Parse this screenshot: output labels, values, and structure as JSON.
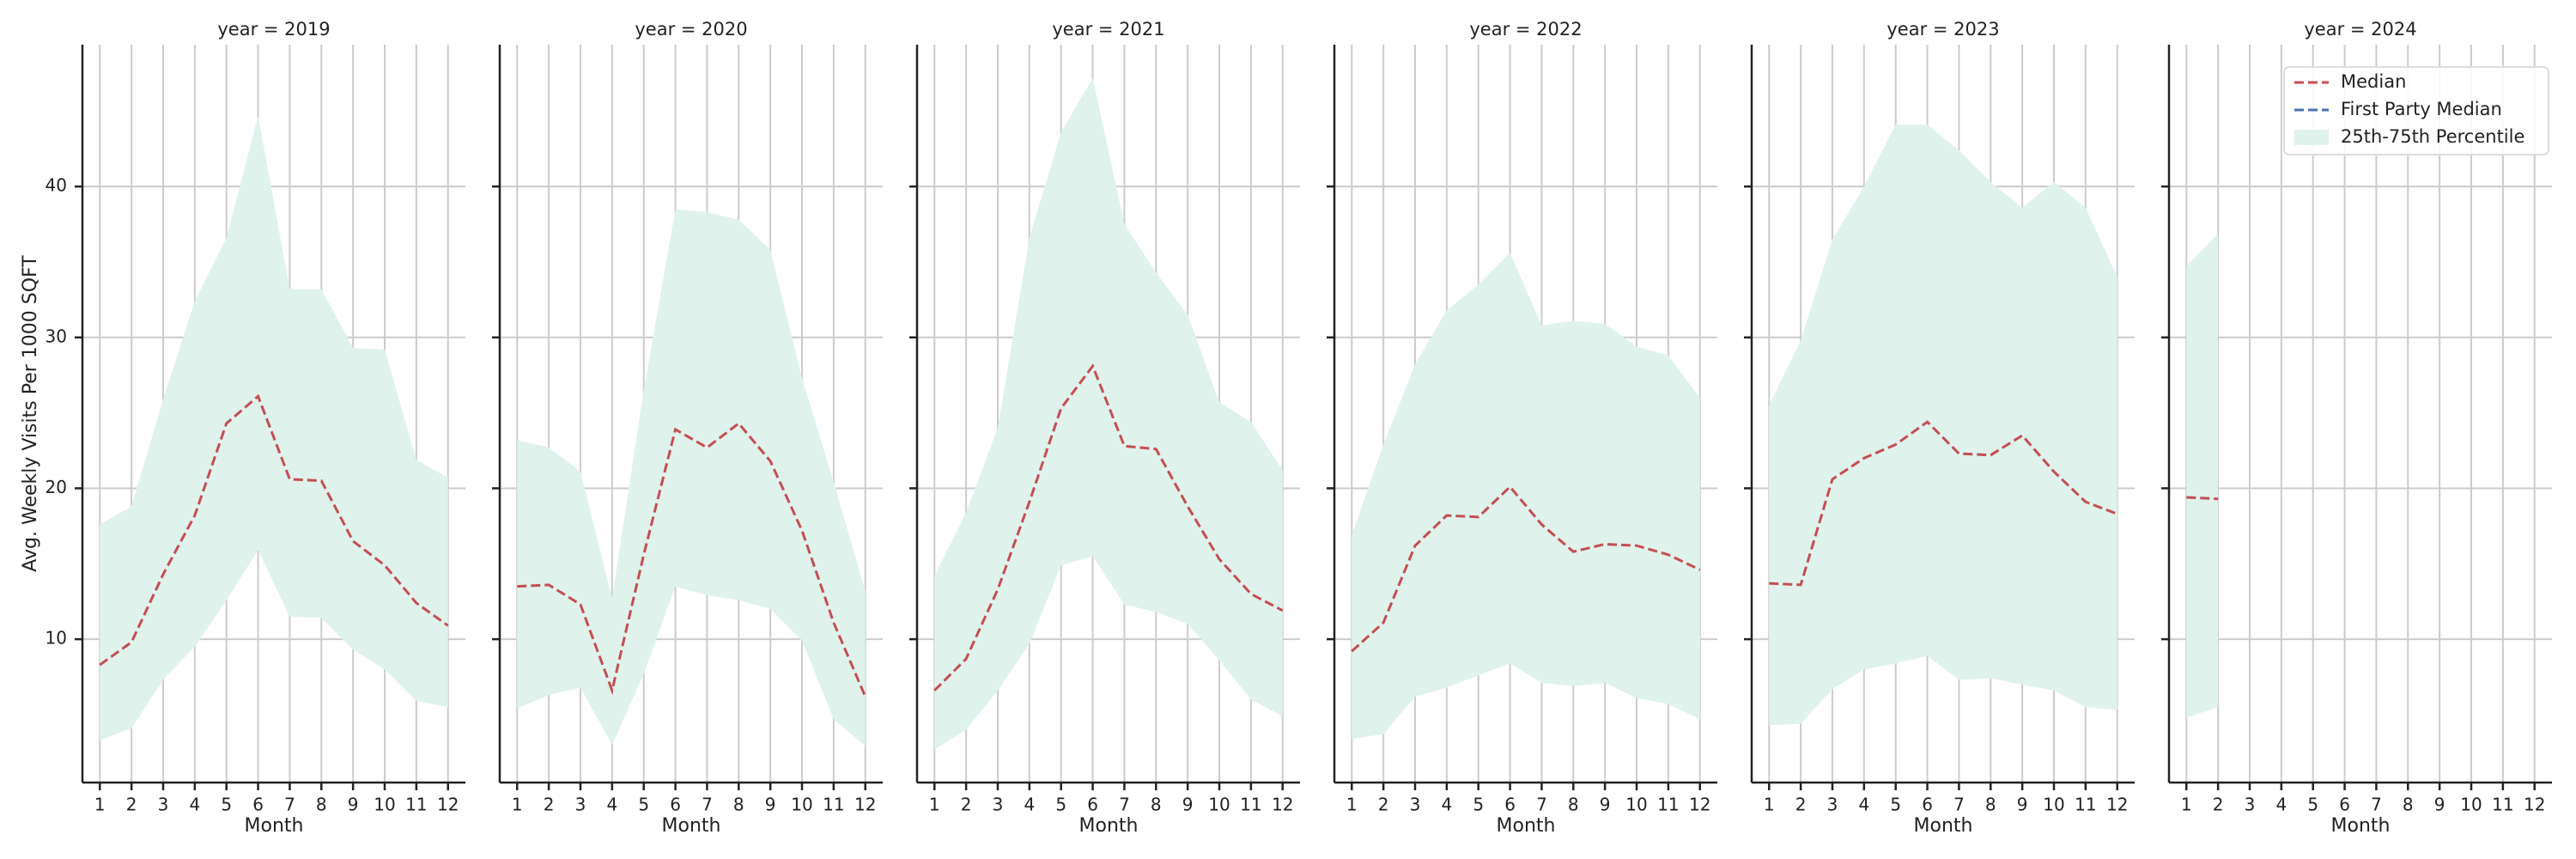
{
  "chart_data": [
    {
      "type": "line",
      "title": "year = 2019",
      "xlabel": "Month",
      "ylabel": "Avg. Weekly Visits Per 1000 SQFT",
      "x": [
        1,
        2,
        3,
        4,
        5,
        6,
        7,
        8,
        9,
        10,
        11,
        12
      ],
      "xlim": [
        0.45,
        12.55
      ],
      "xticks": [
        1,
        2,
        3,
        4,
        5,
        6,
        7,
        8,
        9,
        10,
        11,
        12
      ],
      "ylim": [
        0.5,
        49.4
      ],
      "yticks": [
        10,
        20,
        30,
        40
      ],
      "grid": true,
      "series": [
        {
          "name": "Median",
          "color": "#c44e52",
          "values": [
            8.3,
            9.8,
            14.3,
            18.2,
            24.3,
            26.1,
            20.6,
            20.5,
            16.5,
            14.9,
            12.4,
            10.9
          ]
        },
        {
          "name": "First Party Median",
          "color": "#4c72b0",
          "values": [
            null,
            null,
            null,
            null,
            null,
            null,
            null,
            null,
            null,
            null,
            null,
            null
          ]
        },
        {
          "name": "25th-75th Percentile",
          "color": "#e0f2ec",
          "lower": [
            3.3,
            4.1,
            7.3,
            9.5,
            12.6,
            15.9,
            11.5,
            11.4,
            9.3,
            8.0,
            5.9,
            5.5
          ],
          "upper": [
            17.6,
            18.8,
            25.9,
            32.4,
            36.6,
            44.7,
            33.2,
            33.2,
            29.3,
            29.2,
            21.9,
            20.7
          ]
        }
      ]
    },
    {
      "type": "line",
      "title": "year = 2020",
      "xlabel": "Month",
      "x": [
        1,
        2,
        3,
        4,
        5,
        6,
        7,
        8,
        9,
        10,
        11,
        12
      ],
      "xlim": [
        0.45,
        12.55
      ],
      "xticks": [
        1,
        2,
        3,
        4,
        5,
        6,
        7,
        8,
        9,
        10,
        11,
        12
      ],
      "ylim": [
        0.5,
        49.4
      ],
      "yticks": [
        10,
        20,
        30,
        40
      ],
      "grid": true,
      "series": [
        {
          "name": "Median",
          "color": "#c44e52",
          "values": [
            13.5,
            13.6,
            12.3,
            6.6,
            15.6,
            23.9,
            22.7,
            24.3,
            21.8,
            17.2,
            11.1,
            6.2
          ]
        },
        {
          "name": "First Party Median",
          "color": "#4c72b0",
          "values": [
            null,
            null,
            null,
            null,
            null,
            null,
            null,
            null,
            null,
            null,
            null,
            null
          ]
        },
        {
          "name": "25th-75th Percentile",
          "color": "#e0f2ec",
          "lower": [
            5.4,
            6.3,
            6.8,
            3.0,
            7.7,
            13.5,
            12.9,
            12.6,
            12.0,
            9.9,
            4.7,
            2.9
          ],
          "upper": [
            23.2,
            22.7,
            21.1,
            12.7,
            26.5,
            38.5,
            38.3,
            37.8,
            35.8,
            27.3,
            20.4,
            13.2
          ]
        }
      ]
    },
    {
      "type": "line",
      "title": "year = 2021",
      "xlabel": "Month",
      "x": [
        1,
        2,
        3,
        4,
        5,
        6,
        7,
        8,
        9,
        10,
        11,
        12
      ],
      "xlim": [
        0.45,
        12.55
      ],
      "xticks": [
        1,
        2,
        3,
        4,
        5,
        6,
        7,
        8,
        9,
        10,
        11,
        12
      ],
      "ylim": [
        0.5,
        49.4
      ],
      "yticks": [
        10,
        20,
        30,
        40
      ],
      "grid": true,
      "series": [
        {
          "name": "Median",
          "color": "#c44e52",
          "values": [
            6.6,
            8.7,
            13.3,
            19.1,
            25.3,
            28.1,
            22.8,
            22.6,
            18.8,
            15.3,
            13.0,
            11.9
          ]
        },
        {
          "name": "First Party Median",
          "color": "#4c72b0",
          "values": [
            null,
            null,
            null,
            null,
            null,
            null,
            null,
            null,
            null,
            null,
            null,
            null
          ]
        },
        {
          "name": "25th-75th Percentile",
          "color": "#e0f2ec",
          "lower": [
            2.7,
            4.0,
            6.6,
            9.7,
            14.9,
            15.5,
            12.3,
            11.8,
            11.0,
            8.6,
            6.0,
            4.9
          ],
          "upper": [
            14.2,
            18.4,
            24.0,
            36.6,
            43.6,
            47.2,
            37.5,
            34.3,
            31.5,
            25.7,
            24.4,
            21.2
          ]
        }
      ]
    },
    {
      "type": "line",
      "title": "year = 2022",
      "xlabel": "Month",
      "x": [
        1,
        2,
        3,
        4,
        5,
        6,
        7,
        8,
        9,
        10,
        11,
        12
      ],
      "xlim": [
        0.45,
        12.55
      ],
      "xticks": [
        1,
        2,
        3,
        4,
        5,
        6,
        7,
        8,
        9,
        10,
        11,
        12
      ],
      "ylim": [
        0.5,
        49.4
      ],
      "yticks": [
        10,
        20,
        30,
        40
      ],
      "grid": true,
      "series": [
        {
          "name": "Median",
          "color": "#c44e52",
          "values": [
            9.2,
            11.1,
            16.2,
            18.2,
            18.1,
            20.1,
            17.6,
            15.8,
            16.3,
            16.2,
            15.6,
            14.6
          ]
        },
        {
          "name": "First Party Median",
          "color": "#4c72b0",
          "values": [
            null,
            null,
            null,
            null,
            null,
            null,
            null,
            null,
            null,
            null,
            null,
            null
          ]
        },
        {
          "name": "25th-75th Percentile",
          "color": "#e0f2ec",
          "lower": [
            3.4,
            3.7,
            6.2,
            6.8,
            7.6,
            8.4,
            7.1,
            6.9,
            7.1,
            6.1,
            5.7,
            4.7
          ],
          "upper": [
            16.9,
            22.9,
            28.2,
            31.8,
            33.5,
            35.6,
            30.8,
            31.1,
            30.9,
            29.4,
            28.8,
            26.0
          ]
        }
      ]
    },
    {
      "type": "line",
      "title": "year = 2023",
      "xlabel": "Month",
      "x": [
        1,
        2,
        3,
        4,
        5,
        6,
        7,
        8,
        9,
        10,
        11,
        12
      ],
      "xlim": [
        0.45,
        12.55
      ],
      "xticks": [
        1,
        2,
        3,
        4,
        5,
        6,
        7,
        8,
        9,
        10,
        11,
        12
      ],
      "ylim": [
        0.5,
        49.4
      ],
      "yticks": [
        10,
        20,
        30,
        40
      ],
      "grid": true,
      "series": [
        {
          "name": "Median",
          "color": "#c44e52",
          "values": [
            13.7,
            13.6,
            20.6,
            22.0,
            22.9,
            24.4,
            22.3,
            22.2,
            23.5,
            21.1,
            19.1,
            18.3
          ]
        },
        {
          "name": "First Party Median",
          "color": "#4c72b0",
          "values": [
            null,
            null,
            null,
            null,
            null,
            null,
            null,
            null,
            null,
            null,
            null,
            null
          ]
        },
        {
          "name": "25th-75th Percentile",
          "color": "#e0f2ec",
          "lower": [
            4.3,
            4.4,
            6.7,
            8.0,
            8.4,
            8.9,
            7.3,
            7.4,
            7.0,
            6.6,
            5.5,
            5.3
          ],
          "upper": [
            25.5,
            29.8,
            36.5,
            40.0,
            44.1,
            44.1,
            42.4,
            40.3,
            38.6,
            40.3,
            38.6,
            34.0
          ]
        }
      ]
    },
    {
      "type": "line",
      "title": "year = 2024",
      "xlabel": "Month",
      "legend": "upper right",
      "x": [
        1,
        2,
        3,
        4,
        5,
        6,
        7,
        8,
        9,
        10,
        11,
        12
      ],
      "xlim": [
        0.45,
        12.55
      ],
      "xticks": [
        1,
        2,
        3,
        4,
        5,
        6,
        7,
        8,
        9,
        10,
        11,
        12
      ],
      "ylim": [
        0.5,
        49.4
      ],
      "yticks": [
        10,
        20,
        30,
        40
      ],
      "grid": true,
      "series": [
        {
          "name": "Median",
          "color": "#c44e52",
          "values": [
            19.4,
            19.3,
            null,
            null,
            null,
            null,
            null,
            null,
            null,
            null,
            null,
            null
          ]
        },
        {
          "name": "First Party Median",
          "color": "#4c72b0",
          "values": [
            null,
            null,
            null,
            null,
            null,
            null,
            null,
            null,
            null,
            null,
            null,
            null
          ]
        },
        {
          "name": "25th-75th Percentile",
          "color": "#e0f2ec",
          "lower": [
            4.8,
            5.5,
            null,
            null,
            null,
            null,
            null,
            null,
            null,
            null,
            null,
            null
          ],
          "upper": [
            34.7,
            36.9,
            null,
            null,
            null,
            null,
            null,
            null,
            null,
            null,
            null,
            null
          ]
        }
      ]
    }
  ]
}
